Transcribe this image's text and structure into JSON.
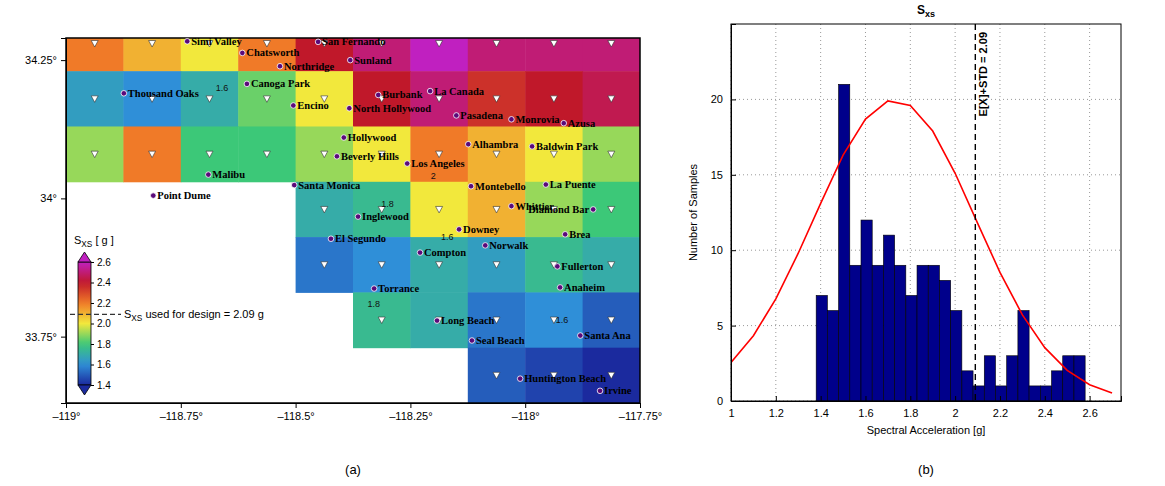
{
  "chart_data": [
    {
      "type": "heatmap_map",
      "panel_label": "(a)",
      "xlim": [
        -119,
        -117.75
      ],
      "xticks": [
        {
          "value": -119,
          "label": "–119°"
        },
        {
          "value": -118.75,
          "label": "–118.75°"
        },
        {
          "value": -118.5,
          "label": "–118.5°"
        },
        {
          "value": -118.25,
          "label": "–118.25°"
        },
        {
          "value": -118,
          "label": "–118°"
        },
        {
          "value": -117.75,
          "label": "–117.75°"
        }
      ],
      "ylim": [
        33.63,
        34.29
      ],
      "yticks": [
        {
          "value": 33.75,
          "label": "33.75°"
        },
        {
          "value": 34,
          "label": "34°"
        },
        {
          "value": 34.25,
          "label": "34.25°"
        }
      ],
      "cells": {
        "lon": [
          -118.9375,
          -118.8125,
          -118.6875,
          -118.5625,
          -118.4375,
          -118.3125,
          -118.1875,
          -118.0625,
          -117.9375,
          -117.8125
        ],
        "lat": [
          34.28,
          34.18,
          34.08,
          33.98,
          33.88,
          33.78,
          33.68
        ],
        "values": [
          [
            2.2,
            2.1,
            2.0,
            2.2,
            2.4,
            2.5,
            2.6,
            2.5,
            2.5,
            2.5
          ],
          [
            1.65,
            1.6,
            1.7,
            1.85,
            2.0,
            2.4,
            2.5,
            2.35,
            2.4,
            2.45
          ],
          [
            1.9,
            2.2,
            1.8,
            1.8,
            1.9,
            2.0,
            2.2,
            2.1,
            2.0,
            1.9
          ],
          [
            null,
            null,
            null,
            null,
            1.7,
            1.75,
            2.0,
            2.1,
            1.9,
            1.8
          ],
          [
            null,
            null,
            null,
            null,
            1.55,
            1.6,
            1.7,
            1.65,
            1.75,
            1.7
          ],
          [
            null,
            null,
            null,
            null,
            null,
            1.75,
            1.7,
            1.55,
            1.6,
            1.5
          ],
          [
            null,
            null,
            null,
            null,
            null,
            null,
            null,
            1.5,
            1.45,
            1.4
          ]
        ]
      },
      "colorbar": {
        "title": [
          "S",
          "XS",
          " [ g ]"
        ],
        "range": [
          1.4,
          2.6
        ],
        "ticks": [
          1.4,
          1.6,
          1.8,
          {
            "value": 2,
            "label": "2.0"
          },
          2.2,
          2.4,
          2.6
        ]
      },
      "design_value": {
        "value": 2.09,
        "label": [
          "S",
          "XS",
          " used for design = 2.09 g"
        ]
      },
      "cities": [
        {
          "name": "Simi Valley",
          "lon": -118.736,
          "lat": 34.284
        },
        {
          "name": "Chatsworth",
          "lon": -118.616,
          "lat": 34.263
        },
        {
          "name": "San Fernando",
          "lon": -118.451,
          "lat": 34.283
        },
        {
          "name": "Northridge",
          "lon": -118.534,
          "lat": 34.239
        },
        {
          "name": "Sunland",
          "lon": -118.381,
          "lat": 34.25
        },
        {
          "name": "Canoga Park",
          "lon": -118.606,
          "lat": 34.207
        },
        {
          "name": "Burbank",
          "lon": -118.32,
          "lat": 34.187
        },
        {
          "name": "La Canada",
          "lon": -118.207,
          "lat": 34.194
        },
        {
          "name": "Thousand Oaks",
          "lon": -118.874,
          "lat": 34.19
        },
        {
          "name": "Encino",
          "lon": -118.505,
          "lat": 34.168
        },
        {
          "name": "North Hollywood",
          "lon": -118.383,
          "lat": 34.163
        },
        {
          "name": "Pasadena",
          "lon": -118.15,
          "lat": 34.15
        },
        {
          "name": "Monrovia",
          "lon": -118.03,
          "lat": 34.143
        },
        {
          "name": "Azusa",
          "lon": -117.916,
          "lat": 34.136
        },
        {
          "name": "Hollywood",
          "lon": -118.395,
          "lat": 34.11
        },
        {
          "name": "Alhambra",
          "lon": -118.124,
          "lat": 34.098
        },
        {
          "name": "Baldwin Park",
          "lon": -117.985,
          "lat": 34.094
        },
        {
          "name": "Beverly Hills",
          "lon": -118.41,
          "lat": 34.076
        },
        {
          "name": "Los Angeles",
          "lon": -118.257,
          "lat": 34.063
        },
        {
          "name": "Malibu",
          "lon": -118.69,
          "lat": 34.043
        },
        {
          "name": "Point Dume",
          "lon": -118.81,
          "lat": 34.005
        },
        {
          "name": "Santa Monica",
          "lon": -118.503,
          "lat": 34.024
        },
        {
          "name": "Montebello",
          "lon": -118.118,
          "lat": 34.022
        },
        {
          "name": "La Puente",
          "lon": -117.955,
          "lat": 34.025
        },
        {
          "name": "Whittier",
          "lon": -118.03,
          "lat": 33.986
        },
        {
          "name": "Diamond Bar",
          "lon": -117.852,
          "lat": 33.98
        },
        {
          "name": "Inglewood",
          "lon": -118.364,
          "lat": 33.967
        },
        {
          "name": "Downey",
          "lon": -118.144,
          "lat": 33.944
        },
        {
          "name": "El Segundo",
          "lon": -118.423,
          "lat": 33.927
        },
        {
          "name": "Compton",
          "lon": -118.229,
          "lat": 33.902
        },
        {
          "name": "Norwalk",
          "lon": -118.087,
          "lat": 33.915
        },
        {
          "name": "Brea",
          "lon": -117.913,
          "lat": 33.935
        },
        {
          "name": "Fullerton",
          "lon": -117.93,
          "lat": 33.877
        },
        {
          "name": "Anaheim",
          "lon": -117.924,
          "lat": 33.839
        },
        {
          "name": "Torrance",
          "lon": -118.329,
          "lat": 33.837
        },
        {
          "name": "Long Beach",
          "lon": -118.192,
          "lat": 33.779
        },
        {
          "name": "Santa Ana",
          "lon": -117.88,
          "lat": 33.752
        },
        {
          "name": "Seal Beach",
          "lon": -118.116,
          "lat": 33.743
        },
        {
          "name": "Huntington Beach",
          "lon": -118.011,
          "lat": 33.674
        },
        {
          "name": "Irvine",
          "lon": -117.837,
          "lat": 33.652
        }
      ],
      "contour_labels": [
        {
          "text": "1.6",
          "lon": -118.66,
          "lat": 34.2
        },
        {
          "text": "1.8",
          "lon": -118.3,
          "lat": 33.99
        },
        {
          "text": "2",
          "lon": -118.2,
          "lat": 34.04
        },
        {
          "text": "1.6",
          "lon": -118.17,
          "lat": 33.93
        },
        {
          "text": "1.8",
          "lon": -118.33,
          "lat": 33.81
        },
        {
          "text": "1.6",
          "lon": -117.92,
          "lat": 33.78
        }
      ]
    },
    {
      "type": "histogram",
      "panel_label": "(b)",
      "title": "S",
      "title_subscript": "xs",
      "x_label": "Spectral Acceleration [g]",
      "y_label": "Number of Samples",
      "bins": [
        1.38,
        1.43,
        1.48,
        1.53,
        1.58,
        1.63,
        1.68,
        1.73,
        1.78,
        1.83,
        1.88,
        1.93,
        1.98,
        2.03,
        2.08,
        2.13,
        2.18,
        2.23,
        2.28,
        2.33,
        2.38,
        2.43,
        2.48,
        2.53,
        2.58
      ],
      "counts": [
        7,
        6,
        21,
        9,
        12,
        9,
        11,
        9,
        7,
        9,
        9,
        8,
        6,
        2,
        1,
        3,
        1,
        3,
        6,
        1,
        1,
        2,
        3,
        3
      ],
      "color": "#00008b",
      "curve": {
        "x": [
          1.0,
          1.1,
          1.2,
          1.3,
          1.4,
          1.5,
          1.6,
          1.7,
          1.8,
          1.9,
          2.0,
          2.1,
          2.2,
          2.3,
          2.4,
          2.5,
          2.6,
          2.7
        ],
        "values": [
          2.56,
          4.33,
          6.77,
          9.8,
          13.1,
          16.3,
          18.7,
          19.9,
          19.6,
          17.9,
          15.1,
          11.8,
          8.53,
          5.71,
          3.54,
          2.03,
          1.08,
          0.53
        ],
        "color": "#ff0000"
      },
      "reference_line": {
        "value": 2.09,
        "label": "E[X]+STD = 2.09"
      },
      "xlim": [
        1,
        2.74
      ],
      "xticks": [
        1,
        1.2,
        1.4,
        1.6,
        1.8,
        2,
        2.2,
        2.4,
        2.6
      ],
      "ylim": [
        0,
        25
      ],
      "yticks": [
        0,
        5,
        10,
        15,
        20
      ],
      "grid": true
    }
  ]
}
